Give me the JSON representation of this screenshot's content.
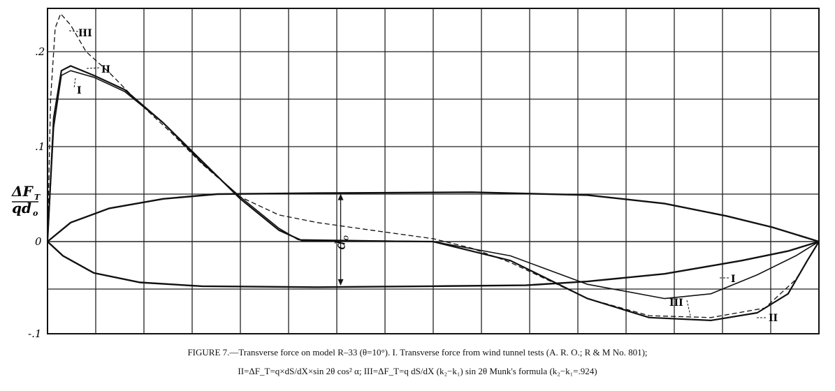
{
  "chart_data": {
    "type": "line",
    "y_axis": {
      "label_parts": [
        "ΔF",
        "T",
        "qd",
        "o"
      ],
      "ticks": [
        {
          "label": ".2",
          "value": 0.2
        },
        {
          "label": ".1",
          "value": 0.1
        },
        {
          "label": "0",
          "value": 0
        },
        {
          "label": "-.1",
          "value": -0.1
        }
      ],
      "range": [
        -0.1,
        0.24
      ]
    },
    "x_axis": {
      "range": [
        0,
        1
      ]
    },
    "grid": true,
    "series": [
      {
        "name": "I",
        "style": "solid",
        "points": [
          [
            0,
            0
          ],
          [
            0.008,
            0.12
          ],
          [
            0.018,
            0.175
          ],
          [
            0.03,
            0.18
          ],
          [
            0.06,
            0.173
          ],
          [
            0.1,
            0.158
          ],
          [
            0.15,
            0.125
          ],
          [
            0.2,
            0.083
          ],
          [
            0.25,
            0.047
          ],
          [
            0.3,
            0.014
          ],
          [
            0.325,
            0.002
          ],
          [
            0.5,
            0.0
          ],
          [
            0.6,
            -0.015
          ],
          [
            0.7,
            -0.045
          ],
          [
            0.8,
            -0.06
          ],
          [
            0.86,
            -0.055
          ],
          [
            0.92,
            -0.035
          ],
          [
            0.97,
            -0.015
          ],
          [
            1.0,
            0.0
          ]
        ]
      },
      {
        "name": "II",
        "style": "solid",
        "points": [
          [
            0,
            0
          ],
          [
            0.008,
            0.13
          ],
          [
            0.018,
            0.18
          ],
          [
            0.03,
            0.185
          ],
          [
            0.06,
            0.175
          ],
          [
            0.1,
            0.16
          ],
          [
            0.15,
            0.125
          ],
          [
            0.2,
            0.085
          ],
          [
            0.25,
            0.045
          ],
          [
            0.3,
            0.012
          ],
          [
            0.33,
            0.001
          ],
          [
            0.5,
            0.0
          ],
          [
            0.6,
            -0.02
          ],
          [
            0.7,
            -0.06
          ],
          [
            0.78,
            -0.08
          ],
          [
            0.86,
            -0.083
          ],
          [
            0.92,
            -0.075
          ],
          [
            0.96,
            -0.055
          ],
          [
            0.985,
            -0.02
          ],
          [
            1.0,
            0.0
          ]
        ]
      },
      {
        "name": "III",
        "style": "dashed",
        "points": [
          [
            0,
            0
          ],
          [
            0.004,
            0.15
          ],
          [
            0.01,
            0.225
          ],
          [
            0.017,
            0.24
          ],
          [
            0.03,
            0.228
          ],
          [
            0.05,
            0.2
          ],
          [
            0.08,
            0.178
          ],
          [
            0.12,
            0.145
          ],
          [
            0.16,
            0.115
          ],
          [
            0.2,
            0.082
          ],
          [
            0.25,
            0.047
          ],
          [
            0.3,
            0.028
          ],
          [
            0.35,
            0.02
          ],
          [
            0.42,
            0.012
          ],
          [
            0.5,
            0.003
          ],
          [
            0.55,
            -0.007
          ],
          [
            0.6,
            -0.022
          ],
          [
            0.7,
            -0.06
          ],
          [
            0.78,
            -0.078
          ],
          [
            0.86,
            -0.08
          ],
          [
            0.93,
            -0.07
          ],
          [
            0.97,
            -0.04
          ],
          [
            1.0,
            0.0
          ]
        ]
      }
    ],
    "annotations": [
      {
        "text": "III",
        "series": "III"
      },
      {
        "text": "II",
        "series": "II"
      },
      {
        "text": "I",
        "series": "I"
      },
      {
        "text": "I",
        "series": "I"
      },
      {
        "text": "III",
        "series": "III"
      },
      {
        "text": "II",
        "series": "II"
      },
      {
        "text": "d",
        "sub": "o"
      }
    ],
    "body_outline": {
      "upper": [
        [
          0,
          0
        ],
        [
          0.03,
          0.02
        ],
        [
          0.08,
          0.035
        ],
        [
          0.15,
          0.045
        ],
        [
          0.22,
          0.05
        ],
        [
          0.35,
          0.051
        ],
        [
          0.55,
          0.052
        ],
        [
          0.7,
          0.049
        ],
        [
          0.8,
          0.04
        ],
        [
          0.88,
          0.027
        ],
        [
          0.94,
          0.015
        ],
        [
          1.0,
          0.0
        ]
      ],
      "lower": [
        [
          0,
          0
        ],
        [
          0.02,
          -0.015
        ],
        [
          0.06,
          -0.033
        ],
        [
          0.12,
          -0.043
        ],
        [
          0.2,
          -0.047
        ],
        [
          0.35,
          -0.048
        ],
        [
          0.5,
          -0.047
        ],
        [
          0.62,
          -0.046
        ],
        [
          0.7,
          -0.042
        ],
        [
          0.8,
          -0.034
        ],
        [
          0.9,
          -0.02
        ],
        [
          0.96,
          -0.01
        ],
        [
          1.0,
          0.0
        ]
      ]
    }
  },
  "caption": {
    "line1": "FIGURE 7.—Transverse force on model R–33 (θ=10°).  I. Transverse force from wind tunnel tests (A. R. O.; R & M No. 801);",
    "line2": "II=ΔF_T=q×dS/dX×sin 2θ cos² α;  III=ΔF_T=q dS/dX (k₂−k₁) sin 2θ Munk's formula (k₂−k₁=.924)"
  }
}
